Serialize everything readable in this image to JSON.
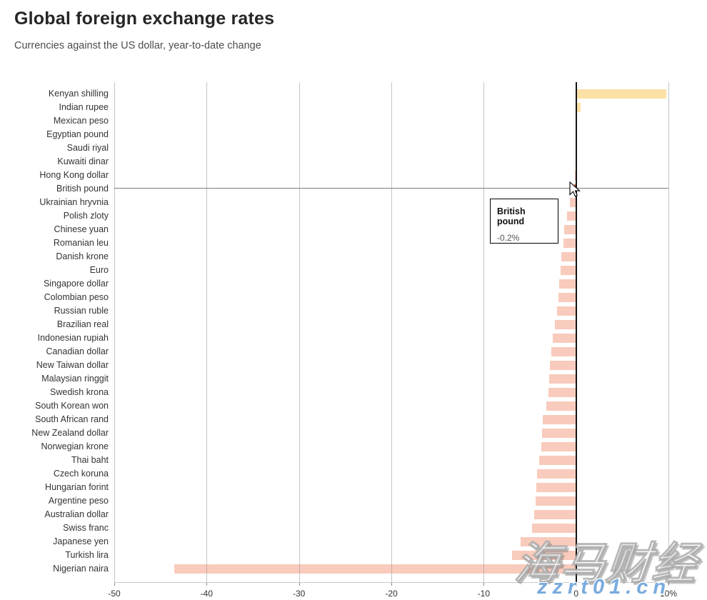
{
  "header": {
    "title": "Global foreign exchange rates",
    "subtitle": "Currencies against the US dollar, year-to-date change"
  },
  "chart_data": {
    "type": "bar",
    "orientation": "horizontal",
    "title": "Global foreign exchange rates",
    "subtitle": "Currencies against the US dollar, year-to-date change",
    "unit": "%",
    "xlim": [
      -50,
      10
    ],
    "grid": "vertical",
    "categories": [
      "Kenyan shilling",
      "Indian rupee",
      "Mexican peso",
      "Egyptian pound",
      "Saudi riyal",
      "Kuwaiti dinar",
      "Hong Kong dollar",
      "British pound",
      "Ukrainian hryvnia",
      "Polish zloty",
      "Chinese yuan",
      "Romanian leu",
      "Danish krone",
      "Euro",
      "Singapore dollar",
      "Colombian peso",
      "Russian ruble",
      "Brazilian real",
      "Indonesian rupiah",
      "Canadian dollar",
      "New Taiwan dollar",
      "Malaysian ringgit",
      "Swedish krona",
      "South Korean won",
      "South African rand",
      "New Zealand dollar",
      "Norwegian krone",
      "Thai baht",
      "Czech koruna",
      "Hungarian forint",
      "Argentine peso",
      "Australian dollar",
      "Swiss franc",
      "Japanese yen",
      "Turkish lira",
      "Nigerian naira"
    ],
    "values": [
      9.8,
      0.5,
      0.1,
      0.0,
      0.0,
      -0.05,
      -0.1,
      -0.2,
      -0.7,
      -1.0,
      -1.3,
      -1.4,
      -1.6,
      -1.7,
      -1.8,
      -1.9,
      -2.1,
      -2.3,
      -2.5,
      -2.7,
      -2.8,
      -2.9,
      -3.0,
      -3.2,
      -3.6,
      -3.7,
      -3.8,
      -4.0,
      -4.2,
      -4.3,
      -4.4,
      -4.5,
      -4.8,
      -6.0,
      -6.9,
      -43.5
    ],
    "x_ticks": [
      {
        "v": -50,
        "label": "-50"
      },
      {
        "v": -40,
        "label": "-40"
      },
      {
        "v": -30,
        "label": "-30"
      },
      {
        "v": -20,
        "label": "-20"
      },
      {
        "v": -10,
        "label": "-10"
      },
      {
        "v": 0,
        "label": "0"
      },
      {
        "v": 10,
        "label": "10%"
      }
    ],
    "highlight_index": 7,
    "colors": {
      "positive": "#fbe1a5",
      "negative": "#f8cbbc",
      "highlight": "#ce5b3b",
      "zero_line": "#141414",
      "gridline": "#bcbcbc",
      "hover_line": "#7d7d7d"
    }
  },
  "tooltip": {
    "title": "British pound",
    "value": "-0.2%"
  },
  "watermark": {
    "cn": "海马财经",
    "url": "zzrt01.cn"
  }
}
